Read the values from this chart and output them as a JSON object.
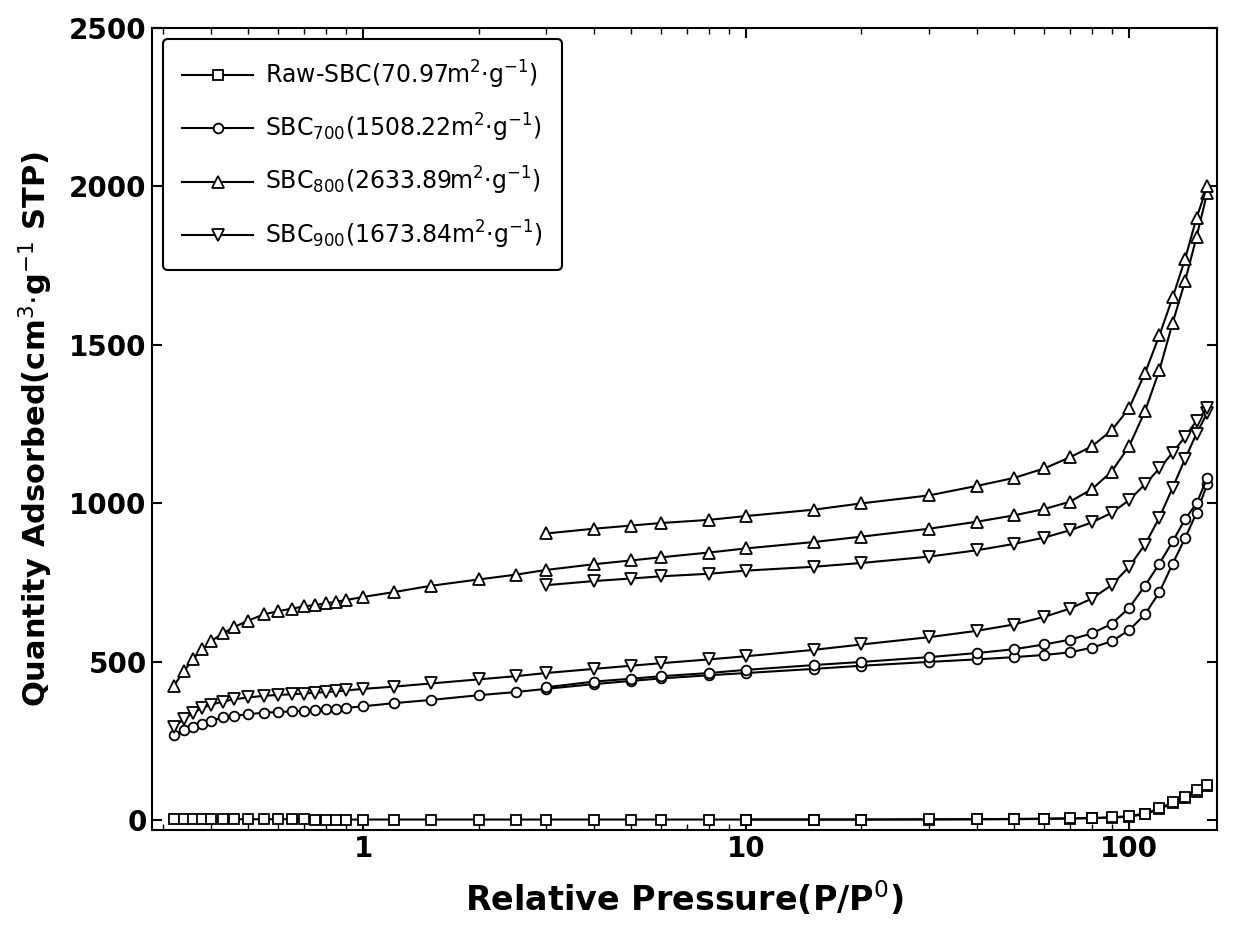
{
  "xlabel": "Relative Pressure(P/P$^{0}$)",
  "ylabel": "Quantity Adsorbed(cm$^{3}$$\\cdot$g$^{-1}$ STP)",
  "xlim_log": [
    0.28,
    170
  ],
  "ylim": [
    -30,
    2500
  ],
  "yticks": [
    0,
    500,
    1000,
    1500,
    2000,
    2500
  ],
  "background_color": "#ffffff",
  "series": [
    {
      "label": "Raw-SBC(70.97m$^{2}$$\\cdot$g$^{-1}$)",
      "marker": "s",
      "markersize": 7,
      "linewidth": 1.5,
      "x_ads": [
        0.32,
        0.34,
        0.36,
        0.38,
        0.4,
        0.43,
        0.46,
        0.5,
        0.55,
        0.6,
        0.65,
        0.7,
        0.75,
        0.8,
        0.85,
        0.9,
        1.0,
        1.2,
        1.5,
        2.0,
        2.5,
        3.0,
        4.0,
        5.0,
        6.0,
        8.0,
        10.0,
        15.0,
        20.0,
        30.0,
        40.0,
        50.0,
        60.0,
        70.0,
        80.0,
        90.0,
        100.0,
        110.0,
        120.0,
        130.0,
        140.0,
        150.0,
        160.0
      ],
      "y_ads": [
        5,
        5,
        4,
        4,
        4,
        4,
        4,
        4,
        4,
        4,
        4,
        4,
        3,
        3,
        3,
        3,
        3,
        3,
        3,
        3,
        3,
        3,
        3,
        3,
        3,
        3,
        3,
        3,
        3,
        3,
        4,
        4,
        5,
        6,
        7,
        9,
        12,
        20,
        35,
        55,
        70,
        90,
        110
      ],
      "x_des": [
        160.0,
        150.0,
        140.0,
        130.0,
        120.0,
        110.0,
        100.0,
        90.0,
        80.0,
        70.0,
        60.0,
        50.0,
        40.0,
        30.0,
        20.0,
        15.0,
        10.0
      ],
      "y_des": [
        113,
        95,
        74,
        58,
        38,
        22,
        14,
        10,
        8,
        7,
        6,
        5,
        4,
        4,
        3,
        3,
        3
      ]
    },
    {
      "label": "SBC$_{700}$(1508.22m$^{2}$$\\cdot$g$^{-1}$)",
      "marker": "o",
      "markersize": 7,
      "linewidth": 1.5,
      "x_ads": [
        0.32,
        0.34,
        0.36,
        0.38,
        0.4,
        0.43,
        0.46,
        0.5,
        0.55,
        0.6,
        0.65,
        0.7,
        0.75,
        0.8,
        0.85,
        0.9,
        1.0,
        1.2,
        1.5,
        2.0,
        2.5,
        3.0,
        4.0,
        5.0,
        6.0,
        8.0,
        10.0,
        15.0,
        20.0,
        30.0,
        40.0,
        50.0,
        60.0,
        70.0,
        80.0,
        90.0,
        100.0,
        110.0,
        120.0,
        130.0,
        140.0,
        150.0,
        160.0
      ],
      "y_ads": [
        270,
        285,
        295,
        305,
        315,
        325,
        330,
        335,
        340,
        342,
        344,
        346,
        348,
        350,
        352,
        355,
        360,
        370,
        380,
        395,
        405,
        415,
        430,
        440,
        448,
        458,
        465,
        478,
        488,
        500,
        508,
        515,
        522,
        530,
        545,
        565,
        600,
        650,
        720,
        810,
        890,
        970,
        1060
      ],
      "x_des": [
        160.0,
        150.0,
        140.0,
        130.0,
        120.0,
        110.0,
        100.0,
        90.0,
        80.0,
        70.0,
        60.0,
        50.0,
        40.0,
        30.0,
        20.0,
        15.0,
        10.0,
        8.0,
        6.0,
        5.0,
        4.0,
        3.0
      ],
      "y_des": [
        1080,
        1000,
        950,
        880,
        810,
        740,
        670,
        620,
        590,
        570,
        555,
        540,
        528,
        515,
        500,
        490,
        475,
        465,
        455,
        447,
        438,
        420
      ]
    },
    {
      "label": "SBC$_{800}$(2633.89m$^{2}$$\\cdot$g$^{-1}$)",
      "marker": "^",
      "markersize": 8,
      "linewidth": 1.5,
      "x_ads": [
        0.32,
        0.34,
        0.36,
        0.38,
        0.4,
        0.43,
        0.46,
        0.5,
        0.55,
        0.6,
        0.65,
        0.7,
        0.75,
        0.8,
        0.85,
        0.9,
        1.0,
        1.2,
        1.5,
        2.0,
        2.5,
        3.0,
        4.0,
        5.0,
        6.0,
        8.0,
        10.0,
        15.0,
        20.0,
        30.0,
        40.0,
        50.0,
        60.0,
        70.0,
        80.0,
        90.0,
        100.0,
        110.0,
        120.0,
        130.0,
        140.0,
        150.0,
        160.0
      ],
      "y_ads": [
        425,
        470,
        510,
        540,
        565,
        590,
        610,
        630,
        650,
        660,
        668,
        675,
        680,
        685,
        690,
        695,
        705,
        720,
        740,
        760,
        775,
        790,
        808,
        820,
        830,
        845,
        858,
        878,
        895,
        920,
        942,
        962,
        982,
        1005,
        1045,
        1100,
        1180,
        1290,
        1420,
        1570,
        1700,
        1840,
        1980
      ],
      "x_des": [
        160.0,
        150.0,
        140.0,
        130.0,
        120.0,
        110.0,
        100.0,
        90.0,
        80.0,
        70.0,
        60.0,
        50.0,
        40.0,
        30.0,
        20.0,
        15.0,
        10.0,
        8.0,
        6.0,
        5.0,
        4.0,
        3.0
      ],
      "y_des": [
        2000,
        1900,
        1770,
        1650,
        1530,
        1410,
        1300,
        1230,
        1180,
        1145,
        1110,
        1080,
        1055,
        1025,
        1000,
        980,
        960,
        948,
        938,
        930,
        920,
        905
      ]
    },
    {
      "label": "SBC$_{900}$(1673.84m$^{2}$$\\cdot$g$^{-1}$)",
      "marker": "v",
      "markersize": 8,
      "linewidth": 1.5,
      "x_ads": [
        0.32,
        0.34,
        0.36,
        0.38,
        0.4,
        0.43,
        0.46,
        0.5,
        0.55,
        0.6,
        0.65,
        0.7,
        0.75,
        0.8,
        0.85,
        0.9,
        1.0,
        1.2,
        1.5,
        2.0,
        2.5,
        3.0,
        4.0,
        5.0,
        6.0,
        8.0,
        10.0,
        15.0,
        20.0,
        30.0,
        40.0,
        50.0,
        60.0,
        70.0,
        80.0,
        90.0,
        100.0,
        110.0,
        120.0,
        130.0,
        140.0,
        150.0,
        160.0
      ],
      "y_ads": [
        295,
        320,
        340,
        355,
        365,
        375,
        382,
        388,
        393,
        396,
        398,
        400,
        403,
        405,
        407,
        410,
        415,
        422,
        432,
        445,
        455,
        465,
        478,
        488,
        496,
        508,
        518,
        538,
        555,
        578,
        598,
        618,
        642,
        668,
        700,
        742,
        800,
        870,
        955,
        1050,
        1140,
        1220,
        1285
      ],
      "x_des": [
        160.0,
        150.0,
        140.0,
        130.0,
        120.0,
        110.0,
        100.0,
        90.0,
        80.0,
        70.0,
        60.0,
        50.0,
        40.0,
        30.0,
        20.0,
        15.0,
        10.0,
        8.0,
        6.0,
        5.0,
        4.0,
        3.0
      ],
      "y_des": [
        1300,
        1260,
        1210,
        1160,
        1110,
        1060,
        1010,
        970,
        940,
        915,
        892,
        872,
        852,
        832,
        812,
        800,
        788,
        778,
        770,
        763,
        755,
        742
      ]
    }
  ]
}
